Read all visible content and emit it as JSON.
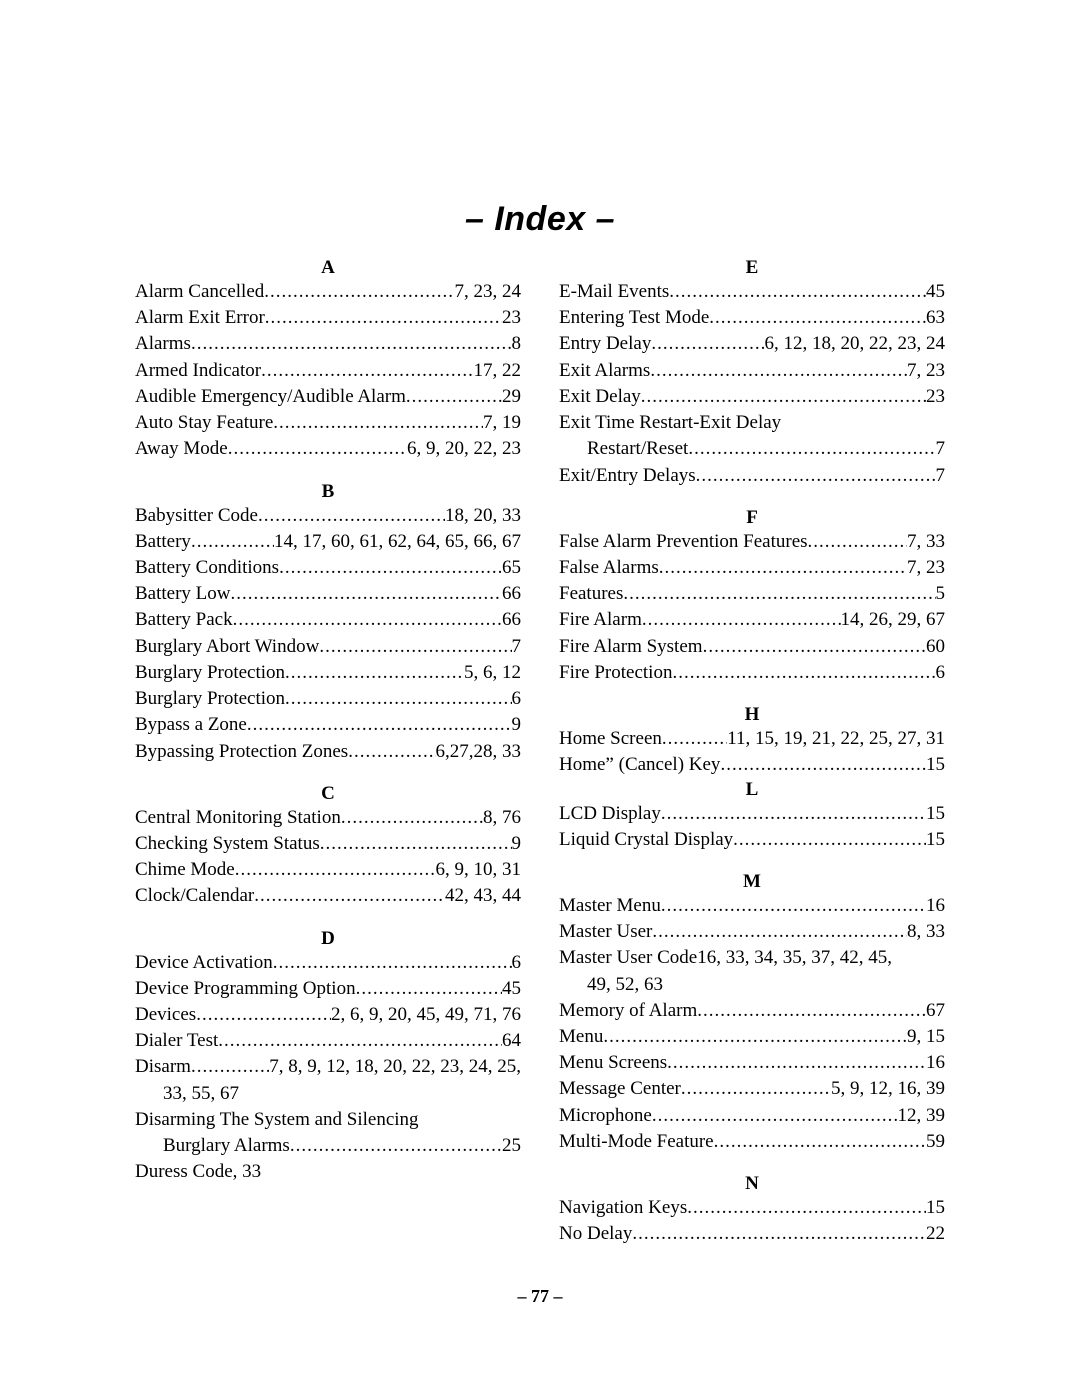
{
  "title": "– Index –",
  "pageNumber": "– 77 –",
  "left": [
    {
      "type": "letter",
      "text": "A",
      "first": true
    },
    {
      "type": "entry",
      "label": "Alarm Cancelled ",
      "pages": " 7, 23, 24"
    },
    {
      "type": "entry",
      "label": "Alarm Exit Error ",
      "pages": "  23"
    },
    {
      "type": "entry",
      "label": "Alarms ",
      "pages": " 8"
    },
    {
      "type": "entry",
      "label": "Armed Indicator",
      "pages": " 17, 22"
    },
    {
      "type": "entry",
      "label": "Audible Emergency/Audible Alarm",
      "pages": " 29"
    },
    {
      "type": "entry",
      "label": "Auto Stay Feature ",
      "pages": " 7, 19"
    },
    {
      "type": "entry",
      "label": "Away Mode",
      "pages": " 6, 9, 20, 22, 23"
    },
    {
      "type": "spacer"
    },
    {
      "type": "letter",
      "text": "B"
    },
    {
      "type": "entry",
      "label": "Babysitter Code ",
      "pages": " 18, 20, 33"
    },
    {
      "type": "entry",
      "label": "Battery",
      "pages": " 14, 17, 60, 61, 62, 64, 65, 66, 67"
    },
    {
      "type": "entry",
      "label": "Battery Conditions ",
      "pages": " 65"
    },
    {
      "type": "entry",
      "label": "Battery Low ",
      "pages": " 66"
    },
    {
      "type": "entry",
      "label": "Battery Pack ",
      "pages": " 66"
    },
    {
      "type": "entry",
      "label": "Burglary Abort Window ",
      "pages": " 7"
    },
    {
      "type": "entry",
      "label": "Burglary Protection ",
      "pages": " 5, 6, 12"
    },
    {
      "type": "entry",
      "label": "Burglary Protection ",
      "pages": "  6"
    },
    {
      "type": "entry",
      "label": "Bypass a Zone ",
      "pages": " 9"
    },
    {
      "type": "entry",
      "label": "Bypassing Protection Zones ",
      "pages": " 6,27,28, 33"
    },
    {
      "type": "spacer"
    },
    {
      "type": "letter",
      "text": "C"
    },
    {
      "type": "entry",
      "label": "Central Monitoring Station",
      "pages": "  8, 76"
    },
    {
      "type": "entry",
      "label": "Checking System Status ",
      "pages": "  9"
    },
    {
      "type": "entry",
      "label": "Chime Mode ",
      "pages": " 6, 9, 10, 31"
    },
    {
      "type": "entry",
      "label": "Clock/Calendar",
      "pages": " 42, 43, 44"
    },
    {
      "type": "spacer"
    },
    {
      "type": "letter",
      "text": "D"
    },
    {
      "type": "entry",
      "label": "Device Activation",
      "pages": " 6"
    },
    {
      "type": "entry",
      "label": "Device Programming Option",
      "pages": " 45"
    },
    {
      "type": "entry",
      "label": "Devices",
      "pages": " 2, 6, 9, 20, 45, 49, 71, 76"
    },
    {
      "type": "entry",
      "label": "Dialer Test ",
      "pages": " 64"
    },
    {
      "type": "entry",
      "label": "Disarm",
      "pages": " 7, 8, 9, 12, 18, 20, 22, 23, 24, 25,"
    },
    {
      "type": "cont",
      "text": "33, 55, 67"
    },
    {
      "type": "nodots",
      "text": "Disarming The System and Silencing"
    },
    {
      "type": "cont-entry",
      "label": "Burglary Alarms",
      "pages": "  25"
    },
    {
      "type": "nodots",
      "text": "Duress Code, 33"
    }
  ],
  "right": [
    {
      "type": "letter",
      "text": "E",
      "first": true
    },
    {
      "type": "entry",
      "label": "E-Mail Events ",
      "pages": " 45"
    },
    {
      "type": "entry",
      "label": "Entering Test Mode ",
      "pages": " 63"
    },
    {
      "type": "entry",
      "label": "Entry Delay ",
      "pages": " 6, 12, 18, 20, 22, 23, 24"
    },
    {
      "type": "entry",
      "label": "Exit Alarms ",
      "pages": "  7, 23"
    },
    {
      "type": "entry",
      "label": "Exit Delay",
      "pages": " 23"
    },
    {
      "type": "nodots",
      "text": "Exit Time Restart-Exit Delay"
    },
    {
      "type": "cont-entry",
      "label": "Restart/Reset ",
      "pages": " 7"
    },
    {
      "type": "entry",
      "label": "Exit/Entry Delays ",
      "pages": " 7"
    },
    {
      "type": "spacer"
    },
    {
      "type": "letter",
      "text": "F"
    },
    {
      "type": "entry",
      "label": "False Alarm Prevention Features",
      "pages": " 7, 33"
    },
    {
      "type": "entry",
      "label": "False Alarms ",
      "pages": " 7, 23"
    },
    {
      "type": "entry",
      "label": "Features",
      "pages": " 5"
    },
    {
      "type": "entry",
      "label": "Fire Alarm ",
      "pages": " 14, 26, 29, 67"
    },
    {
      "type": "entry",
      "label": "Fire Alarm System",
      "pages": " 60"
    },
    {
      "type": "entry",
      "label": "Fire Protection ",
      "pages": " 6"
    },
    {
      "type": "spacer"
    },
    {
      "type": "letter",
      "text": "H"
    },
    {
      "type": "entry",
      "label": "Home Screen ",
      "pages": "11, 15, 19, 21, 22, 25, 27, 31"
    },
    {
      "type": "entry",
      "label": "Home” (Cancel) Key ",
      "pages": " 15"
    },
    {
      "type": "letter",
      "text": "L",
      "tight": true
    },
    {
      "type": "entry",
      "label": "LCD Display ",
      "pages": " 15"
    },
    {
      "type": "entry",
      "label": "Liquid Crystal Display ",
      "pages": " 15"
    },
    {
      "type": "spacer"
    },
    {
      "type": "letter",
      "text": "M"
    },
    {
      "type": "entry",
      "label": "Master Menu ",
      "pages": "  16"
    },
    {
      "type": "entry",
      "label": "Master User",
      "pages": " 8, 33"
    },
    {
      "type": "nodots",
      "text": "Master User Code16, 33, 34, 35, 37, 42, 45,"
    },
    {
      "type": "cont",
      "text": "49, 52, 63"
    },
    {
      "type": "entry",
      "label": "Memory of Alarm ",
      "pages": " 67"
    },
    {
      "type": "entry",
      "label": "Menu ",
      "pages": " 9, 15"
    },
    {
      "type": "entry",
      "label": "Menu Screens ",
      "pages": " 16"
    },
    {
      "type": "entry",
      "label": "Message Center",
      "pages": " 5, 9, 12, 16, 39"
    },
    {
      "type": "entry",
      "label": "Microphone",
      "pages": " 12, 39"
    },
    {
      "type": "entry",
      "label": "Multi-Mode Feature",
      "pages": " 59"
    },
    {
      "type": "spacer"
    },
    {
      "type": "letter",
      "text": "N"
    },
    {
      "type": "entry",
      "label": "Navigation Keys",
      "pages": " 15"
    },
    {
      "type": "entry",
      "label": "No Delay ",
      "pages": " 22"
    }
  ]
}
